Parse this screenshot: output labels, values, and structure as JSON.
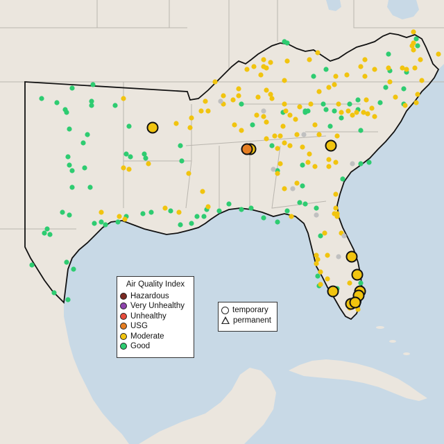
{
  "map": {
    "colors": {
      "water": "#c8d9e6",
      "land": "#ebe6de",
      "boundary": "#b9b5ae",
      "region_outline": "#000000"
    },
    "monitor_colors": {
      "Hazardous": "#7a2a22",
      "Very Unhealthy": "#8e44ad",
      "Unhealthy": "#e74c3c",
      "USG": "#e67e22",
      "Moderate": "#f1c40f",
      "Good": "#2ecc71",
      "No data": "#c0c0c0"
    }
  },
  "legend": {
    "title": "Air Quality Index",
    "items": [
      {
        "label": "Hazardous",
        "color": "#7a2a22"
      },
      {
        "label": "Very Unhealthy",
        "color": "#8e44ad"
      },
      {
        "label": "Unhealthy",
        "color": "#e74c3c"
      },
      {
        "label": "USG",
        "color": "#e67e22"
      },
      {
        "label": "Moderate",
        "color": "#f1c40f"
      },
      {
        "label": "Good",
        "color": "#2ecc71"
      }
    ]
  },
  "type_legend": {
    "items": [
      {
        "label": "temporary",
        "icon": "circle-icon"
      },
      {
        "label": "permanent",
        "icon": "triangle-icon"
      }
    ]
  }
}
